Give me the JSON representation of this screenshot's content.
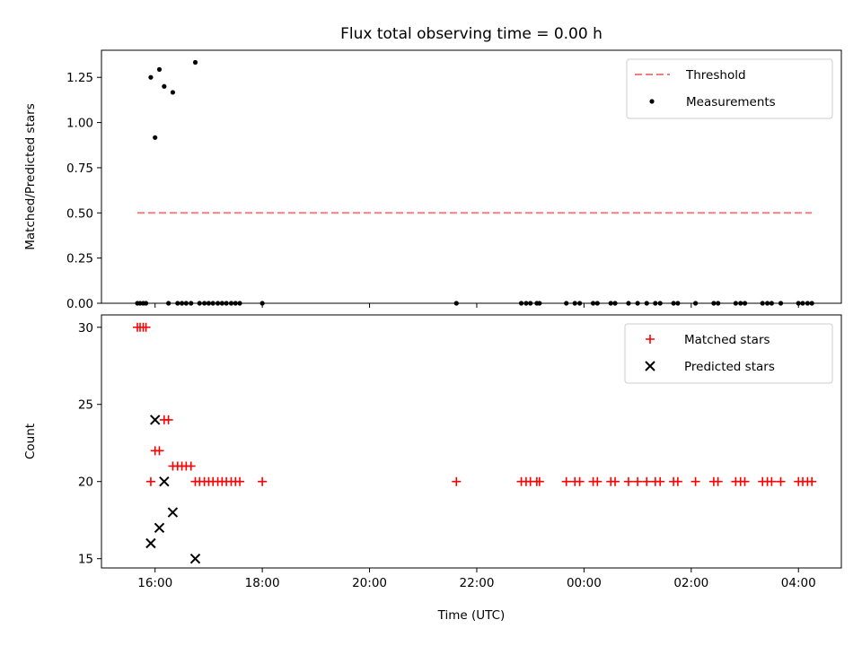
{
  "chart_data": [
    {
      "type": "scatter",
      "title": "Flux total observing time = 0.00 h",
      "xlabel": "",
      "ylabel": "Matched/Predicted stars",
      "xlim": [
        15.0,
        28.8
      ],
      "ylim": [
        0.0,
        1.4
      ],
      "yticks": [
        0.0,
        0.25,
        0.5,
        0.75,
        1.0,
        1.25
      ],
      "ytick_labels": [
        "0.00",
        "0.25",
        "0.50",
        "0.75",
        "1.00",
        "1.25"
      ],
      "xticks": [
        16,
        18,
        20,
        22,
        24,
        26,
        28
      ],
      "legend_position": "upper-right",
      "threshold": {
        "name": "Threshold",
        "value": 0.5,
        "x_start": 15.67,
        "x_end": 28.25,
        "color": "#f08080"
      },
      "series": [
        {
          "name": "Measurements",
          "color": "#000000",
          "points": [
            {
              "x": 15.67,
              "y": 0
            },
            {
              "x": 15.72,
              "y": 0
            },
            {
              "x": 15.78,
              "y": 0
            },
            {
              "x": 15.83,
              "y": 0
            },
            {
              "x": 15.92,
              "y": 1.25
            },
            {
              "x": 16.0,
              "y": 0.917
            },
            {
              "x": 16.08,
              "y": 1.294
            },
            {
              "x": 16.17,
              "y": 1.2
            },
            {
              "x": 16.25,
              "y": 0
            },
            {
              "x": 16.33,
              "y": 1.167
            },
            {
              "x": 16.42,
              "y": 0
            },
            {
              "x": 16.5,
              "y": 0
            },
            {
              "x": 16.58,
              "y": 0
            },
            {
              "x": 16.67,
              "y": 0
            },
            {
              "x": 16.75,
              "y": 1.333
            },
            {
              "x": 16.83,
              "y": 0
            },
            {
              "x": 16.92,
              "y": 0
            },
            {
              "x": 17.0,
              "y": 0
            },
            {
              "x": 17.08,
              "y": 0
            },
            {
              "x": 17.17,
              "y": 0
            },
            {
              "x": 17.25,
              "y": 0
            },
            {
              "x": 17.33,
              "y": 0
            },
            {
              "x": 17.42,
              "y": 0
            },
            {
              "x": 17.5,
              "y": 0
            },
            {
              "x": 17.58,
              "y": 0
            },
            {
              "x": 18.0,
              "y": 0
            },
            {
              "x": 21.62,
              "y": 0
            },
            {
              "x": 22.83,
              "y": 0
            },
            {
              "x": 22.92,
              "y": 0
            },
            {
              "x": 23.0,
              "y": 0
            },
            {
              "x": 23.12,
              "y": 0
            },
            {
              "x": 23.17,
              "y": 0
            },
            {
              "x": 23.67,
              "y": 0
            },
            {
              "x": 23.83,
              "y": 0
            },
            {
              "x": 23.92,
              "y": 0
            },
            {
              "x": 24.17,
              "y": 0
            },
            {
              "x": 24.25,
              "y": 0
            },
            {
              "x": 24.5,
              "y": 0
            },
            {
              "x": 24.58,
              "y": 0
            },
            {
              "x": 24.83,
              "y": 0
            },
            {
              "x": 25.0,
              "y": 0
            },
            {
              "x": 25.17,
              "y": 0
            },
            {
              "x": 25.33,
              "y": 0
            },
            {
              "x": 25.42,
              "y": 0
            },
            {
              "x": 25.67,
              "y": 0
            },
            {
              "x": 25.75,
              "y": 0
            },
            {
              "x": 26.08,
              "y": 0
            },
            {
              "x": 26.42,
              "y": 0
            },
            {
              "x": 26.5,
              "y": 0
            },
            {
              "x": 26.83,
              "y": 0
            },
            {
              "x": 26.92,
              "y": 0
            },
            {
              "x": 27.0,
              "y": 0
            },
            {
              "x": 27.33,
              "y": 0
            },
            {
              "x": 27.42,
              "y": 0
            },
            {
              "x": 27.5,
              "y": 0
            },
            {
              "x": 27.67,
              "y": 0
            },
            {
              "x": 28.0,
              "y": 0
            },
            {
              "x": 28.08,
              "y": 0
            },
            {
              "x": 28.17,
              "y": 0
            },
            {
              "x": 28.25,
              "y": 0
            }
          ]
        }
      ]
    },
    {
      "type": "scatter",
      "title": "",
      "xlabel": "Time (UTC)",
      "ylabel": "Count",
      "xlim": [
        15.0,
        28.8
      ],
      "ylim": [
        14.4,
        30.8
      ],
      "yticks": [
        15,
        20,
        25,
        30
      ],
      "ytick_labels": [
        "15",
        "20",
        "25",
        "30"
      ],
      "xticks": [
        16,
        18,
        20,
        22,
        24,
        26,
        28
      ],
      "xtick_labels": [
        "16:00",
        "18:00",
        "20:00",
        "22:00",
        "00:00",
        "02:00",
        "04:00"
      ],
      "legend_position": "upper-right",
      "series": [
        {
          "name": "Matched stars",
          "marker": "plus",
          "color": "#ff0000",
          "points": [
            {
              "x": 15.67,
              "y": 30
            },
            {
              "x": 15.72,
              "y": 30
            },
            {
              "x": 15.78,
              "y": 30
            },
            {
              "x": 15.83,
              "y": 30
            },
            {
              "x": 15.92,
              "y": 20
            },
            {
              "x": 16.0,
              "y": 22
            },
            {
              "x": 16.08,
              "y": 22
            },
            {
              "x": 16.17,
              "y": 24
            },
            {
              "x": 16.25,
              "y": 24
            },
            {
              "x": 16.33,
              "y": 21
            },
            {
              "x": 16.42,
              "y": 21
            },
            {
              "x": 16.5,
              "y": 21
            },
            {
              "x": 16.58,
              "y": 21
            },
            {
              "x": 16.67,
              "y": 21
            },
            {
              "x": 16.75,
              "y": 20
            },
            {
              "x": 16.83,
              "y": 20
            },
            {
              "x": 16.92,
              "y": 20
            },
            {
              "x": 17.0,
              "y": 20
            },
            {
              "x": 17.08,
              "y": 20
            },
            {
              "x": 17.17,
              "y": 20
            },
            {
              "x": 17.25,
              "y": 20
            },
            {
              "x": 17.33,
              "y": 20
            },
            {
              "x": 17.42,
              "y": 20
            },
            {
              "x": 17.5,
              "y": 20
            },
            {
              "x": 17.58,
              "y": 20
            },
            {
              "x": 18.0,
              "y": 20
            },
            {
              "x": 21.62,
              "y": 20
            },
            {
              "x": 22.83,
              "y": 20
            },
            {
              "x": 22.92,
              "y": 20
            },
            {
              "x": 23.0,
              "y": 20
            },
            {
              "x": 23.12,
              "y": 20
            },
            {
              "x": 23.17,
              "y": 20
            },
            {
              "x": 23.67,
              "y": 20
            },
            {
              "x": 23.83,
              "y": 20
            },
            {
              "x": 23.92,
              "y": 20
            },
            {
              "x": 24.17,
              "y": 20
            },
            {
              "x": 24.25,
              "y": 20
            },
            {
              "x": 24.5,
              "y": 20
            },
            {
              "x": 24.58,
              "y": 20
            },
            {
              "x": 24.83,
              "y": 20
            },
            {
              "x": 25.0,
              "y": 20
            },
            {
              "x": 25.17,
              "y": 20
            },
            {
              "x": 25.33,
              "y": 20
            },
            {
              "x": 25.42,
              "y": 20
            },
            {
              "x": 25.67,
              "y": 20
            },
            {
              "x": 25.75,
              "y": 20
            },
            {
              "x": 26.08,
              "y": 20
            },
            {
              "x": 26.42,
              "y": 20
            },
            {
              "x": 26.5,
              "y": 20
            },
            {
              "x": 26.83,
              "y": 20
            },
            {
              "x": 26.92,
              "y": 20
            },
            {
              "x": 27.0,
              "y": 20
            },
            {
              "x": 27.33,
              "y": 20
            },
            {
              "x": 27.42,
              "y": 20
            },
            {
              "x": 27.5,
              "y": 20
            },
            {
              "x": 27.67,
              "y": 20
            },
            {
              "x": 28.0,
              "y": 20
            },
            {
              "x": 28.08,
              "y": 20
            },
            {
              "x": 28.17,
              "y": 20
            },
            {
              "x": 28.25,
              "y": 20
            }
          ]
        },
        {
          "name": "Predicted stars",
          "marker": "x",
          "color": "#000000",
          "points": [
            {
              "x": 15.92,
              "y": 16
            },
            {
              "x": 16.0,
              "y": 24
            },
            {
              "x": 16.08,
              "y": 17
            },
            {
              "x": 16.17,
              "y": 20
            },
            {
              "x": 16.33,
              "y": 18
            },
            {
              "x": 16.75,
              "y": 15
            }
          ]
        }
      ]
    }
  ]
}
